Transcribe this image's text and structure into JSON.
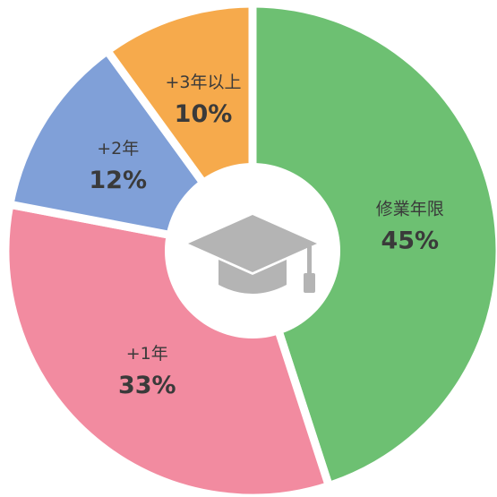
{
  "chart_data": {
    "type": "pie",
    "categories": [
      "修業年限",
      "+1年",
      "+2年",
      "+3年以上"
    ],
    "values": [
      45,
      33,
      12,
      10
    ],
    "value_labels": [
      "45%",
      "33%",
      "12%",
      "10%"
    ],
    "colors": [
      "#6dc072",
      "#f28ba0",
      "#80a0d8",
      "#f6aa4c"
    ]
  }
}
